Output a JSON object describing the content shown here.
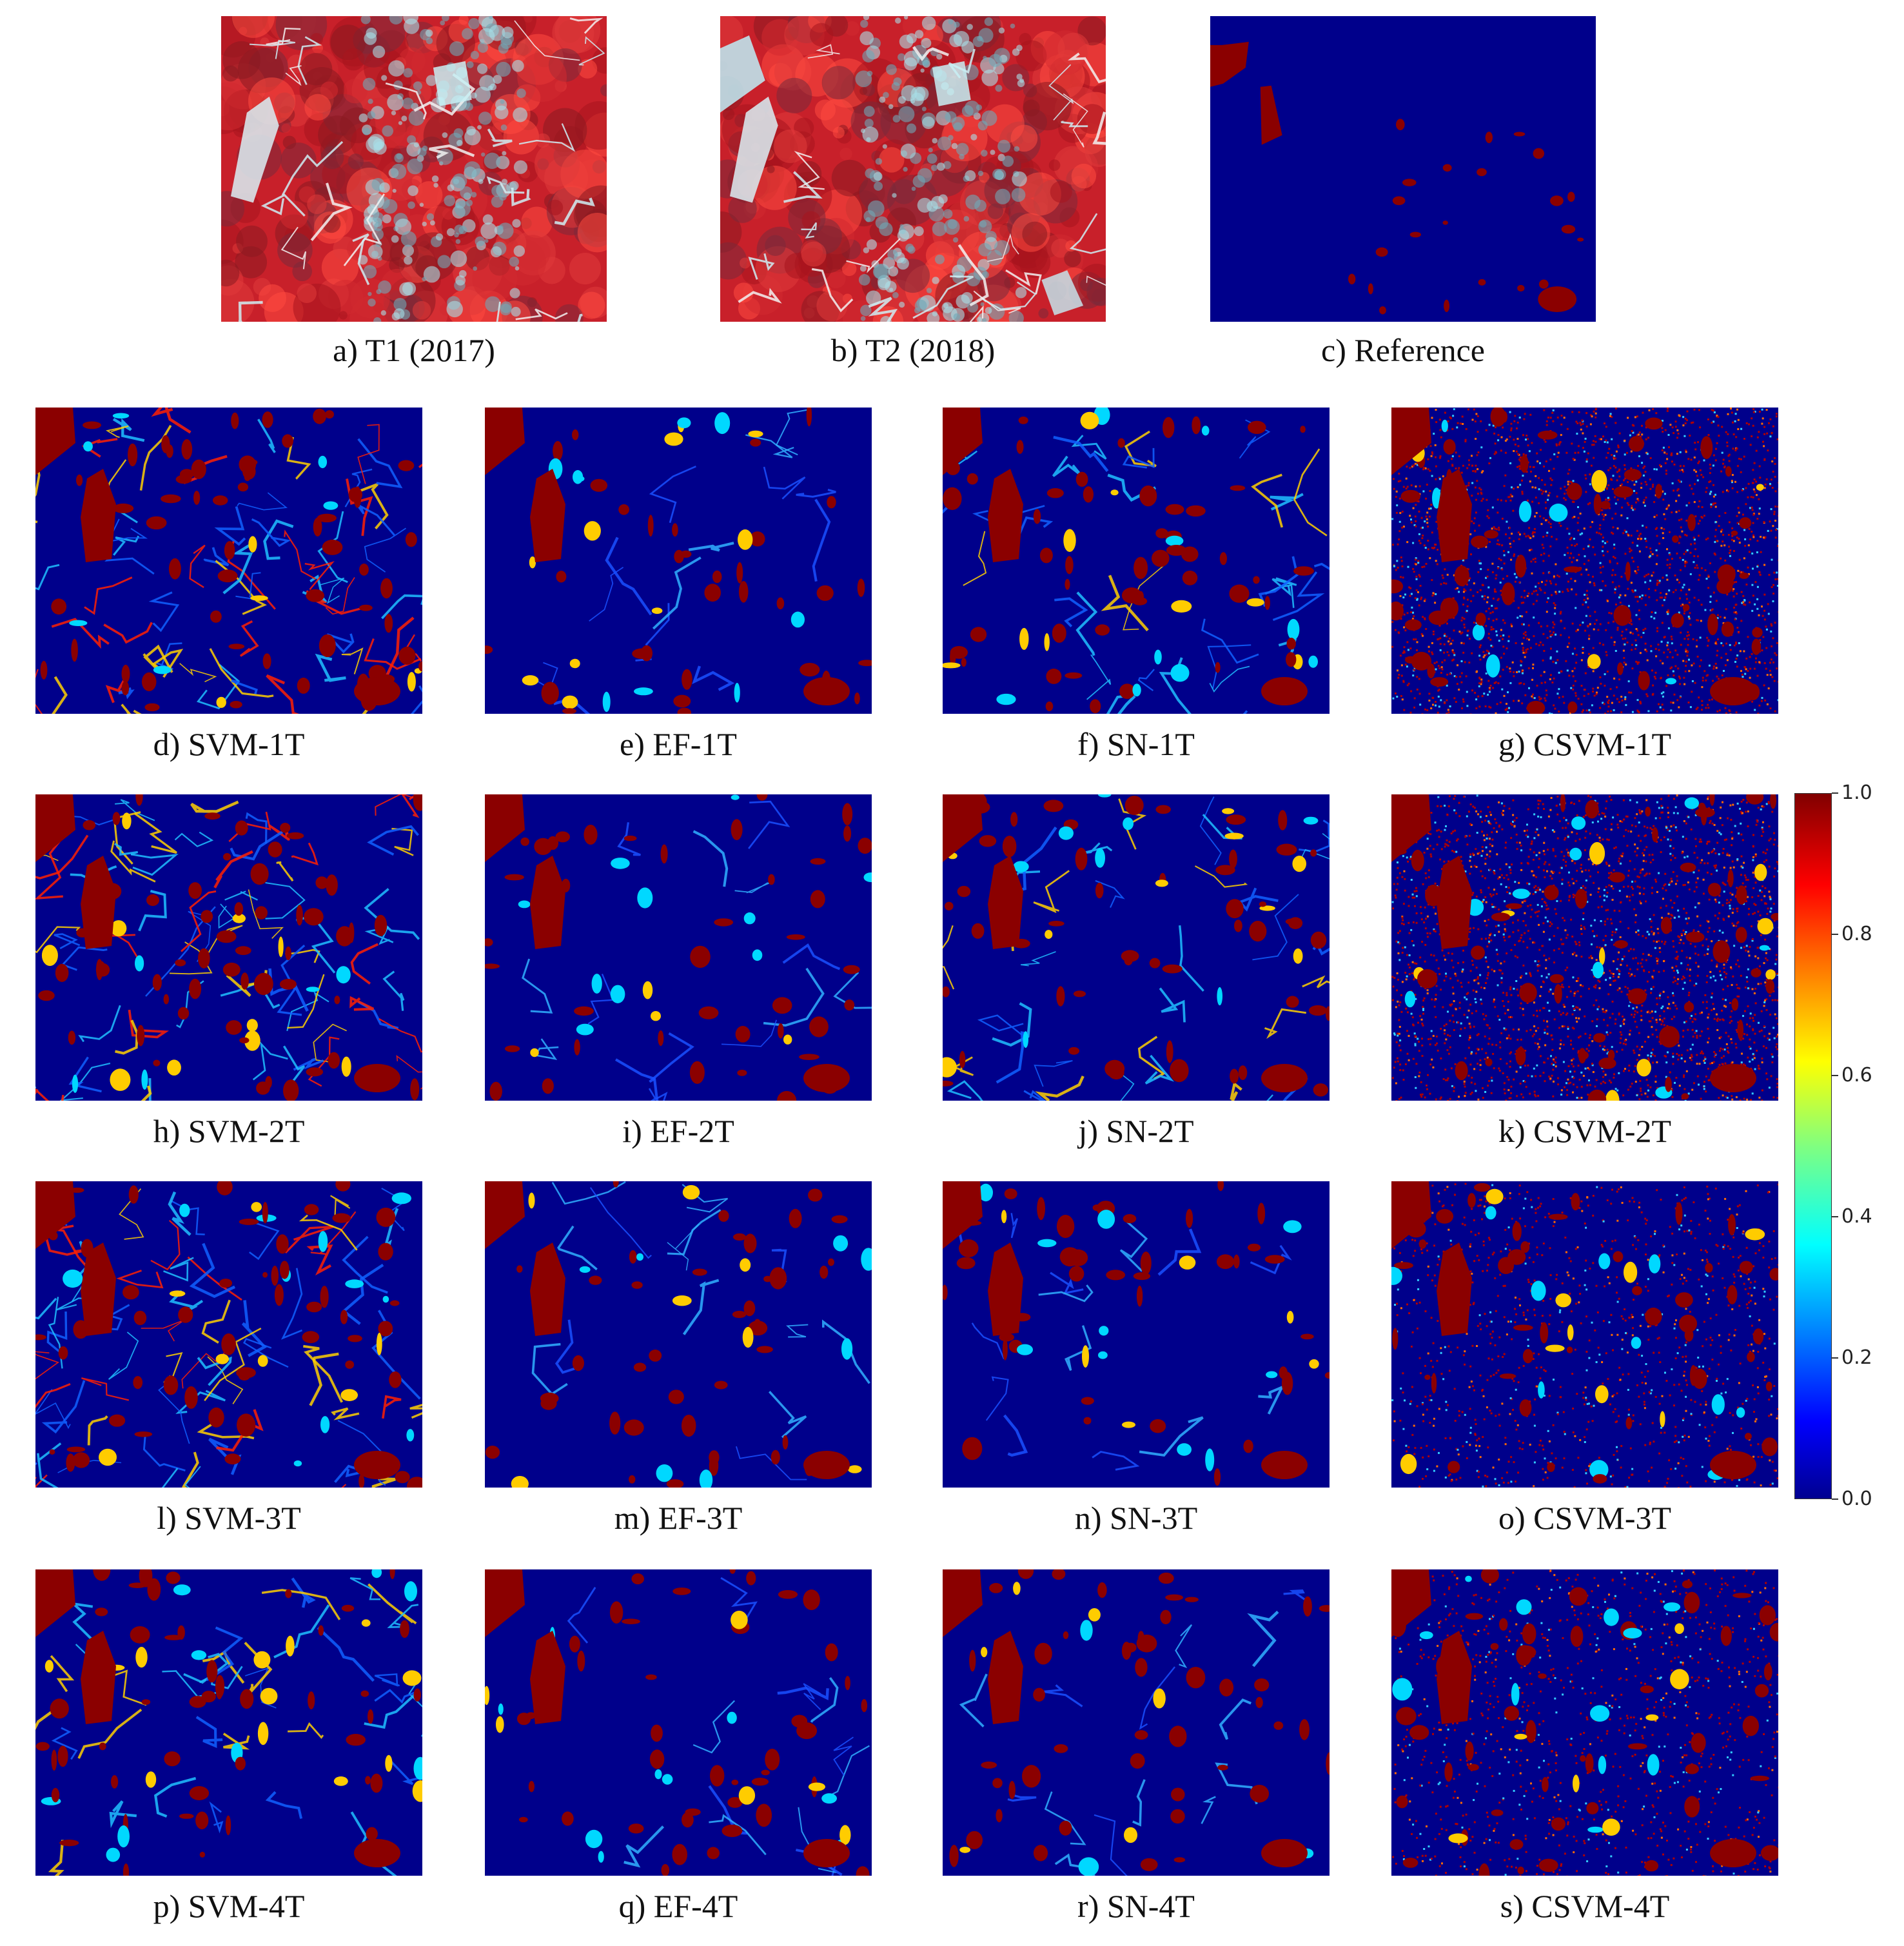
{
  "figure": {
    "top_row": [
      {
        "key": "a",
        "caption": "a) T1 (2017)",
        "kind": "satellite"
      },
      {
        "key": "b",
        "caption": "b) T2 (2018)",
        "kind": "satellite"
      },
      {
        "key": "c",
        "caption": "c) Reference",
        "kind": "reference"
      }
    ],
    "grid": [
      [
        {
          "key": "d",
          "caption": "d) SVM-1T",
          "method": "SVM",
          "noise": "high"
        },
        {
          "key": "e",
          "caption": "e) EF-1T",
          "method": "EF",
          "noise": "low"
        },
        {
          "key": "f",
          "caption": "f) SN-1T",
          "method": "SN",
          "noise": "medium"
        },
        {
          "key": "g",
          "caption": "g) CSVM-1T",
          "method": "CSVM",
          "noise": "speckle-high"
        }
      ],
      [
        {
          "key": "h",
          "caption": "h) SVM-2T",
          "method": "SVM",
          "noise": "high"
        },
        {
          "key": "i",
          "caption": "i) EF-2T",
          "method": "EF",
          "noise": "low"
        },
        {
          "key": "j",
          "caption": "j) SN-2T",
          "method": "SN",
          "noise": "medium"
        },
        {
          "key": "k",
          "caption": "k) CSVM-2T",
          "method": "CSVM",
          "noise": "speckle-high"
        }
      ],
      [
        {
          "key": "l",
          "caption": "l) SVM-3T",
          "method": "SVM",
          "noise": "high"
        },
        {
          "key": "m",
          "caption": "m) EF-3T",
          "method": "EF",
          "noise": "low"
        },
        {
          "key": "n",
          "caption": "n) SN-3T",
          "method": "SN",
          "noise": "low"
        },
        {
          "key": "o",
          "caption": "o) CSVM-3T",
          "method": "CSVM",
          "noise": "speckle-medium"
        }
      ],
      [
        {
          "key": "p",
          "caption": "p) SVM-4T",
          "method": "SVM",
          "noise": "medium"
        },
        {
          "key": "q",
          "caption": "q) EF-4T",
          "method": "EF",
          "noise": "low"
        },
        {
          "key": "r",
          "caption": "r) SN-4T",
          "method": "SN",
          "noise": "low"
        },
        {
          "key": "s",
          "caption": "s) CSVM-4T",
          "method": "CSVM",
          "noise": "speckle-medium"
        }
      ]
    ],
    "colorbar": {
      "min": 0.0,
      "max": 1.0,
      "colormap": "jet",
      "ticks": [
        "1.0",
        "0.8",
        "0.6",
        "0.4",
        "0.2",
        "0.0"
      ]
    },
    "colors": {
      "background_blue": "#00008b",
      "change_red": "#8b0000",
      "satellite_red": "#c8202a",
      "satellite_cyan": "#a8e0e8"
    }
  }
}
